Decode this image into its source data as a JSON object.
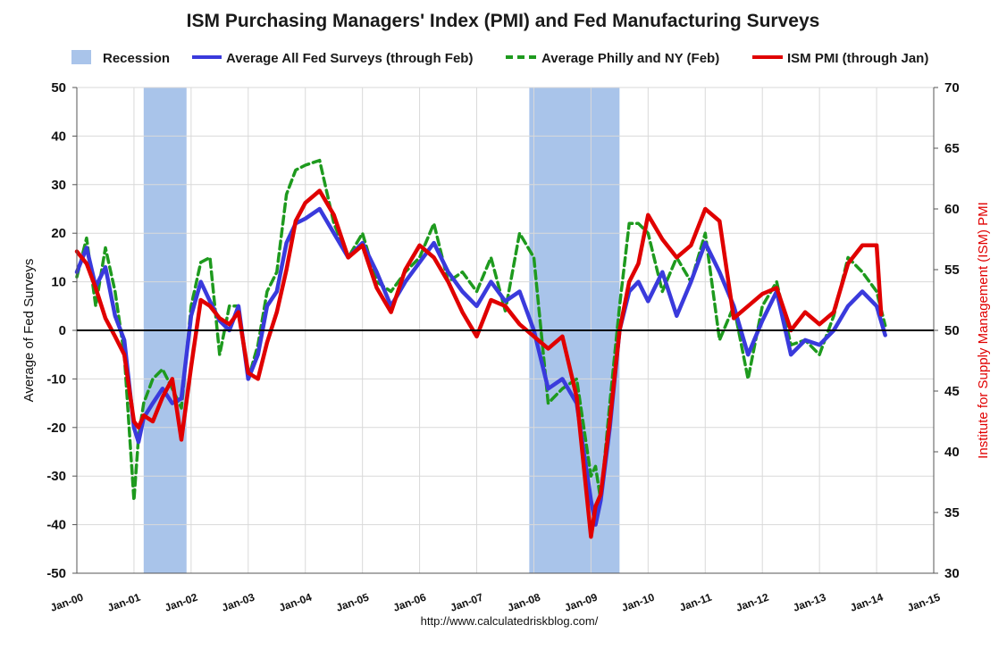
{
  "chart_data": {
    "type": "line",
    "title": "ISM Purchasing Managers' Index (PMI) and Fed Manufacturing Surveys",
    "ylabel_left": "Average of Fed Surveys",
    "ylabel_right": "Institute for Supply Management (ISM) PMI",
    "ylim_left": [
      -50,
      50
    ],
    "ylim_right": [
      30,
      70
    ],
    "yticks_left": [
      "50",
      "40",
      "30",
      "20",
      "10",
      "0",
      "-10",
      "-20",
      "-30",
      "-40",
      "-50"
    ],
    "yticks_right": [
      "70",
      "65",
      "60",
      "55",
      "50",
      "45",
      "40",
      "35",
      "30"
    ],
    "x_ticks": [
      "Jan-00",
      "Jan-01",
      "Jan-02",
      "Jan-03",
      "Jan-04",
      "Jan-05",
      "Jan-06",
      "Jan-07",
      "Jan-08",
      "Jan-09",
      "Jan-10",
      "Jan-11",
      "Jan-12",
      "Jan-13",
      "Jan-14",
      "Jan-15"
    ],
    "xlim": [
      2000.0,
      2015.0
    ],
    "grid": true,
    "legend_position": "top",
    "source_text": "http://www.calculatedriskblog.com/",
    "recessions": [
      {
        "name": "Recession",
        "start": 2001.17,
        "end": 2001.92
      },
      {
        "name": "Recession",
        "start": 2007.92,
        "end": 2009.5
      }
    ],
    "series": [
      {
        "name": "Average All Fed Surveys (through Feb)",
        "axis": "left",
        "color": "#3a3adc",
        "style": "solid",
        "x": [
          2000.0,
          2000.17,
          2000.33,
          2000.5,
          2000.67,
          2000.83,
          2001.0,
          2001.08,
          2001.17,
          2001.33,
          2001.5,
          2001.67,
          2001.83,
          2002.0,
          2002.17,
          2002.33,
          2002.5,
          2002.67,
          2002.83,
          2003.0,
          2003.17,
          2003.33,
          2003.5,
          2003.67,
          2003.83,
          2004.0,
          2004.25,
          2004.5,
          2004.75,
          2005.0,
          2005.25,
          2005.5,
          2005.75,
          2006.0,
          2006.25,
          2006.5,
          2006.75,
          2007.0,
          2007.25,
          2007.5,
          2007.75,
          2008.0,
          2008.25,
          2008.5,
          2008.75,
          2009.0,
          2009.08,
          2009.17,
          2009.33,
          2009.5,
          2009.67,
          2009.83,
          2010.0,
          2010.25,
          2010.5,
          2010.75,
          2011.0,
          2011.25,
          2011.5,
          2011.75,
          2012.0,
          2012.25,
          2012.5,
          2012.75,
          2013.0,
          2013.25,
          2013.5,
          2013.75,
          2014.0,
          2014.15
        ],
        "values": [
          12,
          17,
          9,
          13,
          3,
          -2,
          -20,
          -23,
          -18,
          -15,
          -12,
          -15,
          -14,
          3,
          10,
          6,
          2,
          0,
          5,
          -10,
          -5,
          5,
          8,
          18,
          22,
          23,
          25,
          20,
          15,
          18,
          12,
          5,
          10,
          14,
          18,
          12,
          8,
          5,
          10,
          6,
          8,
          0,
          -12,
          -10,
          -15,
          -35,
          -40,
          -35,
          -20,
          0,
          8,
          10,
          6,
          12,
          3,
          10,
          18,
          12,
          5,
          -5,
          2,
          8,
          -5,
          -2,
          -3,
          0,
          5,
          8,
          5,
          -1
        ]
      },
      {
        "name": "Average Philly and NY (Feb)",
        "axis": "left",
        "color": "#1e9a1e",
        "style": "dashed",
        "x": [
          2000.0,
          2000.17,
          2000.33,
          2000.5,
          2000.67,
          2000.83,
          2001.0,
          2001.08,
          2001.17,
          2001.33,
          2001.5,
          2001.67,
          2001.83,
          2002.0,
          2002.17,
          2002.33,
          2002.5,
          2002.67,
          2002.83,
          2003.0,
          2003.17,
          2003.33,
          2003.5,
          2003.67,
          2003.83,
          2004.0,
          2004.25,
          2004.5,
          2004.75,
          2005.0,
          2005.25,
          2005.5,
          2005.75,
          2006.0,
          2006.25,
          2006.5,
          2006.75,
          2007.0,
          2007.25,
          2007.5,
          2007.75,
          2008.0,
          2008.25,
          2008.5,
          2008.75,
          2009.0,
          2009.08,
          2009.17,
          2009.33,
          2009.5,
          2009.67,
          2009.83,
          2010.0,
          2010.25,
          2010.5,
          2010.75,
          2011.0,
          2011.25,
          2011.5,
          2011.75,
          2012.0,
          2012.25,
          2012.5,
          2012.75,
          2013.0,
          2013.25,
          2013.5,
          2013.75,
          2014.0,
          2014.15
        ],
        "values": [
          11,
          19,
          5,
          17,
          8,
          -5,
          -35,
          -22,
          -15,
          -10,
          -8,
          -12,
          -16,
          5,
          14,
          15,
          -5,
          5,
          5,
          -10,
          -3,
          8,
          12,
          28,
          33,
          34,
          35,
          22,
          15,
          20,
          10,
          8,
          12,
          15,
          22,
          10,
          12,
          8,
          15,
          4,
          20,
          15,
          -15,
          -12,
          -10,
          -30,
          -28,
          -35,
          -15,
          5,
          22,
          22,
          20,
          8,
          15,
          10,
          20,
          -2,
          5,
          -10,
          5,
          10,
          -3,
          -2,
          -5,
          3,
          15,
          12,
          8,
          1
        ]
      },
      {
        "name": "ISM PMI (through Jan)",
        "axis": "right",
        "color": "#e00000",
        "style": "solid",
        "x": [
          2000.0,
          2000.17,
          2000.33,
          2000.5,
          2000.67,
          2000.83,
          2001.0,
          2001.08,
          2001.17,
          2001.33,
          2001.5,
          2001.67,
          2001.83,
          2002.0,
          2002.17,
          2002.33,
          2002.5,
          2002.67,
          2002.83,
          2003.0,
          2003.17,
          2003.33,
          2003.5,
          2003.67,
          2003.83,
          2004.0,
          2004.25,
          2004.5,
          2004.75,
          2005.0,
          2005.25,
          2005.5,
          2005.75,
          2006.0,
          2006.25,
          2006.5,
          2006.75,
          2007.0,
          2007.25,
          2007.5,
          2007.75,
          2008.0,
          2008.25,
          2008.5,
          2008.75,
          2009.0,
          2009.08,
          2009.17,
          2009.33,
          2009.5,
          2009.67,
          2009.83,
          2010.0,
          2010.25,
          2010.5,
          2010.75,
          2011.0,
          2011.25,
          2011.5,
          2011.75,
          2012.0,
          2012.25,
          2012.5,
          2012.75,
          2013.0,
          2013.25,
          2013.5,
          2013.75,
          2014.0,
          2014.08
        ],
        "values": [
          56.5,
          55.5,
          53.5,
          51.0,
          49.5,
          48.0,
          42.5,
          42.0,
          43.0,
          42.5,
          44.5,
          46.0,
          41.0,
          47.0,
          52.5,
          52.0,
          51.0,
          50.5,
          51.5,
          46.5,
          46.0,
          49.0,
          51.5,
          55.0,
          59.0,
          60.5,
          61.5,
          59.5,
          56.0,
          57.0,
          53.5,
          51.5,
          55.0,
          57.0,
          56.0,
          54.0,
          51.5,
          49.5,
          52.5,
          52.0,
          50.5,
          49.5,
          48.5,
          49.5,
          44.5,
          33.0,
          35.5,
          36.5,
          42.5,
          50.0,
          54.0,
          55.5,
          59.5,
          57.5,
          56.0,
          57.0,
          60.0,
          59.0,
          51.0,
          52.0,
          53.0,
          53.5,
          50.0,
          51.5,
          50.5,
          51.5,
          55.5,
          57.0,
          57.0,
          51.3
        ]
      }
    ]
  }
}
